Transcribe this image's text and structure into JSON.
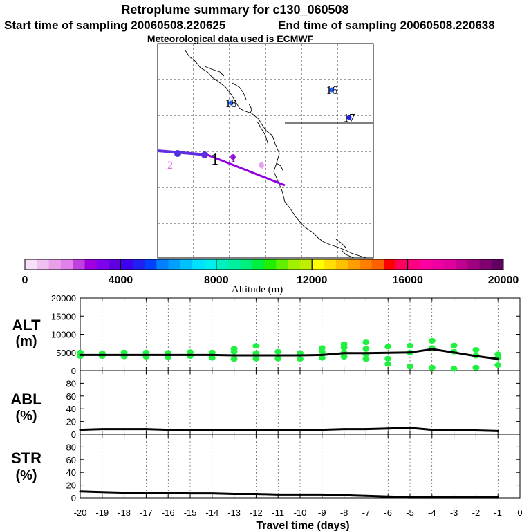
{
  "header": {
    "title": "Retroplume summary for c130_060508",
    "start_label": "Start time of sampling 20060508.220625",
    "end_label": "End time of sampling 20060508.220638",
    "met_label": "Meteorological data used is ECMWF"
  },
  "map": {
    "labels": [
      {
        "text": "16",
        "color": "#000000"
      },
      {
        "text": "18",
        "color": "#000000"
      },
      {
        "text": "17",
        "color": "#000000"
      },
      {
        "text": "2",
        "color": "#e070e0"
      },
      {
        "text": "1",
        "color": "#000000"
      },
      {
        "text": "1",
        "color": "#8000c0"
      },
      {
        "text": "1",
        "color": "#f0a0f0"
      }
    ]
  },
  "colorbar": {
    "ticks": [
      "0",
      "4000",
      "8000",
      "12000",
      "16000",
      "20000"
    ],
    "label": "Altitude (m)",
    "colors": [
      "#f8e0f8",
      "#f0c0f0",
      "#e8a0e8",
      "#e080e8",
      "#c040e0",
      "#a000e0",
      "#8000f0",
      "#6000e0",
      "#4000f0",
      "#2020f0",
      "#0040ff",
      "#0080ff",
      "#00a0ff",
      "#00c0ff",
      "#00e0ff",
      "#00f0f0",
      "#00f0c0",
      "#00f0a0",
      "#00f080",
      "#00f040",
      "#20f000",
      "#60f000",
      "#a0f000",
      "#c0f000",
      "#ffff00",
      "#ffe000",
      "#ffc000",
      "#ffa000",
      "#ff8000",
      "#ff6000",
      "#ff0000",
      "#ff0060",
      "#ff0080",
      "#ff00a0",
      "#f000a0",
      "#e000a0",
      "#c00090",
      "#a00080",
      "#800070",
      "#600060"
    ]
  },
  "panels": {
    "alt_label": "ALT",
    "alt_unit": "(m)",
    "abl_label": "ABL",
    "abl_unit": "(%)",
    "str_label": "STR",
    "str_unit": "(%)",
    "xlabel": "Travel time (days)"
  },
  "chart_data": [
    {
      "type": "line",
      "name": "ALT",
      "title": "ALT (m)",
      "ylim": [
        0,
        20000
      ],
      "yticks": [
        "20000",
        "15000",
        "10000",
        "5000",
        "0"
      ],
      "x": [
        -20,
        -19,
        -18,
        -17,
        -16,
        -15,
        -14,
        -13,
        -12,
        -11,
        -10,
        -9,
        -8,
        -7,
        -6,
        -5,
        -4,
        -3,
        -2,
        -1
      ],
      "values": [
        4300,
        4300,
        4300,
        4300,
        4300,
        4300,
        4300,
        4200,
        4200,
        4200,
        4200,
        4300,
        4800,
        4800,
        4900,
        5000,
        5900,
        5000,
        4000,
        3200
      ],
      "scatter_color": "#20f040",
      "scatter": [
        [
          -20,
          4000
        ],
        [
          -20,
          5000
        ],
        [
          -19,
          4000
        ],
        [
          -19,
          4800
        ],
        [
          -18,
          3900
        ],
        [
          -18,
          5000
        ],
        [
          -17,
          3800
        ],
        [
          -17,
          5000
        ],
        [
          -16,
          3700
        ],
        [
          -16,
          4900
        ],
        [
          -15,
          4000
        ],
        [
          -15,
          5100
        ],
        [
          -14,
          3500
        ],
        [
          -14,
          5000
        ],
        [
          -13,
          3200
        ],
        [
          -13,
          5200
        ],
        [
          -13,
          6000
        ],
        [
          -12,
          3300
        ],
        [
          -12,
          4800
        ],
        [
          -12,
          6800
        ],
        [
          -11,
          3300
        ],
        [
          -11,
          5200
        ],
        [
          -10,
          3200
        ],
        [
          -10,
          4800
        ],
        [
          -9,
          3500
        ],
        [
          -9,
          5200
        ],
        [
          -9,
          6200
        ],
        [
          -8,
          3800
        ],
        [
          -8,
          4900
        ],
        [
          -8,
          6300
        ],
        [
          -8,
          7300
        ],
        [
          -7,
          3200
        ],
        [
          -7,
          4500
        ],
        [
          -7,
          6000
        ],
        [
          -7,
          7800
        ],
        [
          -6,
          1800
        ],
        [
          -6,
          3300
        ],
        [
          -6,
          6600
        ],
        [
          -5,
          1200
        ],
        [
          -5,
          5000
        ],
        [
          -5,
          6900
        ],
        [
          -4,
          800
        ],
        [
          -4,
          6200
        ],
        [
          -4,
          8200
        ],
        [
          -3,
          500
        ],
        [
          -3,
          5200
        ],
        [
          -3,
          6900
        ],
        [
          -2,
          800
        ],
        [
          -2,
          4100
        ],
        [
          -2,
          5700
        ],
        [
          -1,
          1500
        ],
        [
          -1,
          3500
        ],
        [
          -1,
          4500
        ]
      ]
    },
    {
      "type": "line",
      "name": "ABL",
      "title": "ABL (%)",
      "ylim": [
        0,
        100
      ],
      "yticks": [
        "80",
        "60",
        "40",
        "20",
        "0"
      ],
      "x": [
        -20,
        -19,
        -18,
        -17,
        -16,
        -15,
        -14,
        -13,
        -12,
        -11,
        -10,
        -9,
        -8,
        -7,
        -6,
        -5,
        -4,
        -3,
        -2,
        -1
      ],
      "values": [
        7,
        8,
        8,
        8,
        7,
        7,
        7,
        7,
        7,
        7,
        7,
        7,
        8,
        8,
        9,
        10,
        7,
        6,
        6,
        5
      ]
    },
    {
      "type": "line",
      "name": "STR",
      "title": "STR (%)",
      "ylim": [
        0,
        100
      ],
      "yticks": [
        "80",
        "60",
        "40",
        "20",
        "0"
      ],
      "xticks": [
        "-20",
        "-19",
        "-18",
        "-17",
        "-16",
        "-15",
        "-14",
        "-13",
        "-12",
        "-11",
        "-10",
        "-9",
        "-8",
        "-7",
        "-6",
        "-5",
        "-4",
        "-3",
        "-2",
        "-1",
        "0"
      ],
      "x": [
        -20,
        -19,
        -18,
        -17,
        -16,
        -15,
        -14,
        -13,
        -12,
        -11,
        -10,
        -9,
        -8,
        -7,
        -6,
        -5,
        -4,
        -3,
        -2,
        -1
      ],
      "values": [
        10,
        9,
        8,
        8,
        8,
        7,
        7,
        6,
        6,
        5,
        5,
        5,
        4,
        3,
        2,
        1,
        1,
        1,
        1,
        1
      ]
    }
  ]
}
